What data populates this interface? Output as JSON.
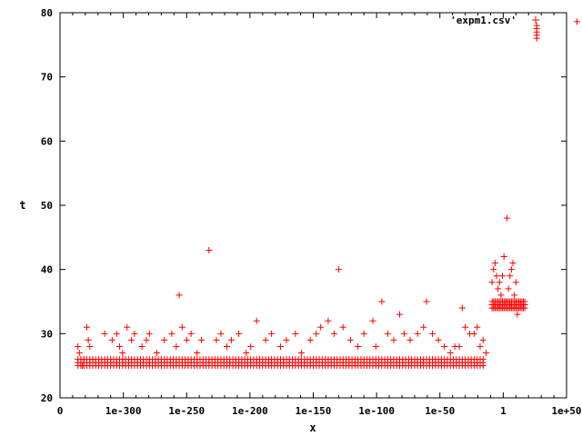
{
  "chart_data": {
    "type": "scatter",
    "title": "",
    "xlabel": "x",
    "ylabel": "t",
    "xlim": [
      -320,
      20
    ],
    "ylim": [
      20,
      80
    ],
    "grid": false,
    "legend_position": "top-right",
    "colors": {
      "series": "#ff0000",
      "axis": "#000000",
      "background": "#ffffff"
    },
    "x_tick_labels": [
      "0",
      "1e-300",
      "1e-250",
      "1e-200",
      "1e-150",
      "1e-100",
      "1e-50",
      "1",
      "1e+50"
    ],
    "y_tick_labels": [
      "20",
      "30",
      "40",
      "50",
      "60",
      "70",
      "80"
    ],
    "series": [
      {
        "name": "'expm1.csv'",
        "marker": "plus",
        "points": [
          [
            -308,
            28
          ],
          [
            -307,
            27
          ],
          [
            -306,
            26
          ],
          [
            -305,
            25
          ],
          [
            -304,
            26
          ],
          [
            -302,
            31
          ],
          [
            -301,
            29
          ],
          [
            -300,
            28
          ],
          [
            -298,
            26
          ],
          [
            -290,
            30
          ],
          [
            -285,
            29
          ],
          [
            -282,
            30
          ],
          [
            -280,
            28
          ],
          [
            -278,
            27
          ],
          [
            -275,
            31
          ],
          [
            -272,
            29
          ],
          [
            -270,
            30
          ],
          [
            -265,
            28
          ],
          [
            -262,
            29
          ],
          [
            -260,
            30
          ],
          [
            -255,
            27
          ],
          [
            -250,
            29
          ],
          [
            -245,
            30
          ],
          [
            -242,
            28
          ],
          [
            -240,
            36
          ],
          [
            -238,
            31
          ],
          [
            -235,
            29
          ],
          [
            -232,
            30
          ],
          [
            -228,
            27
          ],
          [
            -225,
            29
          ],
          [
            -220,
            43
          ],
          [
            -215,
            29
          ],
          [
            -212,
            30
          ],
          [
            -208,
            28
          ],
          [
            -205,
            29
          ],
          [
            -200,
            30
          ],
          [
            -195,
            27
          ],
          [
            -192,
            28
          ],
          [
            -188,
            32
          ],
          [
            -182,
            29
          ],
          [
            -178,
            30
          ],
          [
            -172,
            28
          ],
          [
            -168,
            29
          ],
          [
            -162,
            30
          ],
          [
            -158,
            27
          ],
          [
            -152,
            29
          ],
          [
            -148,
            30
          ],
          [
            -145,
            31
          ],
          [
            -140,
            32
          ],
          [
            -136,
            30
          ],
          [
            -133,
            40
          ],
          [
            -130,
            31
          ],
          [
            -125,
            29
          ],
          [
            -120,
            28
          ],
          [
            -116,
            30
          ],
          [
            -110,
            32
          ],
          [
            -108,
            28
          ],
          [
            -104,
            35
          ],
          [
            -100,
            30
          ],
          [
            -96,
            29
          ],
          [
            -92,
            33
          ],
          [
            -89,
            30
          ],
          [
            -85,
            29
          ],
          [
            -80,
            30
          ],
          [
            -76,
            31
          ],
          [
            -74,
            35
          ],
          [
            -70,
            30
          ],
          [
            -66,
            29
          ],
          [
            -62,
            28
          ],
          [
            -58,
            27
          ],
          [
            -55,
            28
          ],
          [
            -52,
            28
          ],
          [
            -50,
            34
          ],
          [
            -48,
            31
          ],
          [
            -45,
            30
          ],
          [
            -42,
            30
          ],
          [
            -40,
            31
          ],
          [
            -38,
            28
          ],
          [
            -36,
            29
          ],
          [
            -34,
            27
          ],
          [
            -30,
            38
          ],
          [
            -29,
            40
          ],
          [
            -28,
            41
          ],
          [
            -27,
            39
          ],
          [
            -26,
            37
          ],
          [
            -25,
            38
          ],
          [
            -24,
            36
          ],
          [
            -23,
            39
          ],
          [
            -22,
            42
          ],
          [
            -21,
            35
          ],
          [
            -20,
            48
          ],
          [
            -19,
            37
          ],
          [
            -18,
            39
          ],
          [
            -17,
            40
          ],
          [
            -16,
            41
          ],
          [
            -15,
            36
          ],
          [
            -14,
            38
          ],
          [
            -13,
            33
          ],
          [
            0,
            76
          ],
          [
            0,
            76.5
          ],
          [
            0,
            77
          ],
          [
            0,
            77.5
          ],
          [
            0,
            78
          ],
          [
            27,
            78.6
          ]
        ],
        "dense_bands": [
          {
            "x_range": [
              -308,
              -35
            ],
            "y_range": [
              25,
              26
            ],
            "x_step": 2,
            "y_step": 0.5
          },
          {
            "x_range": [
              -30,
              -8
            ],
            "y_range": [
              34,
              35
            ],
            "x_step": 1,
            "y_step": 0.5
          }
        ]
      }
    ]
  }
}
